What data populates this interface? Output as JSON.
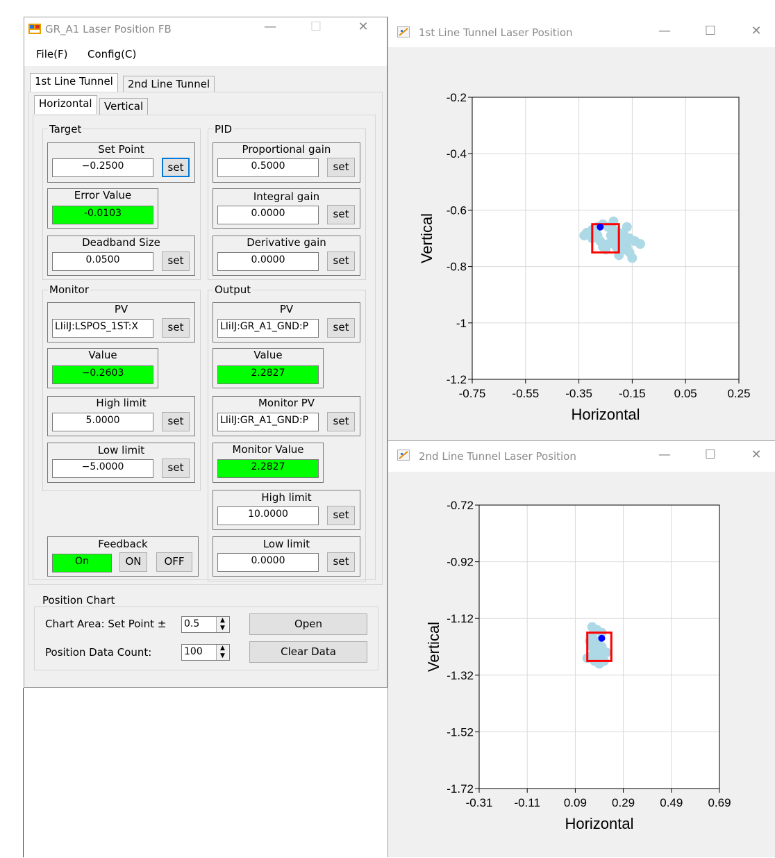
{
  "main_window": {
    "title": "GR_A1 Laser Position FB",
    "menu": [
      "File(F)",
      "Config(C)"
    ],
    "tabs": [
      "1st Line Tunnel",
      "2nd Line Tunnel"
    ],
    "subtabs": [
      "Horizontal",
      "Vertical"
    ],
    "target": {
      "group": "Target",
      "set_point": {
        "label": "Set Point",
        "value": "−0.2500"
      },
      "error_value": {
        "label": "Error Value",
        "value": "-0.0103"
      },
      "deadband": {
        "label": "Deadband Size",
        "value": "0.0500"
      }
    },
    "pid": {
      "group": "PID",
      "proportional": {
        "label": "Proportional gain",
        "value": "0.5000"
      },
      "integral": {
        "label": "Integral gain",
        "value": "0.0000"
      },
      "derivative": {
        "label": "Derivative gain",
        "value": "0.0000"
      }
    },
    "monitor": {
      "group": "Monitor",
      "pv": {
        "label": "PV",
        "value": "LIiIJ:LSPOS_1ST:X"
      },
      "value": {
        "label": "Value",
        "value": "−0.2603"
      },
      "high_limit": {
        "label": "High limit",
        "value": "5.0000"
      },
      "low_limit": {
        "label": "Low limit",
        "value": "−5.0000"
      }
    },
    "output": {
      "group": "Output",
      "pv": {
        "label": "PV",
        "value": "LIiIJ:GR_A1_GND:P"
      },
      "value": {
        "label": "Value",
        "value": "2.2827"
      },
      "monitor_pv": {
        "label": "Monitor PV",
        "value": "LIiIJ:GR_A1_GND:P"
      },
      "monitor_value": {
        "label": "Monitor Value",
        "value": "2.2827"
      },
      "high_limit": {
        "label": "High limit",
        "value": "10.0000"
      },
      "low_limit": {
        "label": "Low limit",
        "value": "0.0000"
      }
    },
    "feedback": {
      "label": "Feedback",
      "state": "On",
      "on_label": "ON",
      "off_label": "OFF"
    },
    "set_label": "set",
    "position_chart": {
      "group": "Position Chart",
      "area_label": "Chart Area: Set Point ±",
      "area_value": "0.5",
      "count_label": "Position Data Count:",
      "count_value": "100",
      "open_label": "Open",
      "clear_label": "Clear Data"
    }
  },
  "colors": {
    "green_indicator": "#00ff00",
    "cloud": "#add8e6",
    "current_point": "#0000ff",
    "target_box": "#ff0000",
    "focus": "#0078d7"
  },
  "icons": [
    "app-icon",
    "minimize-icon",
    "maximize-icon",
    "close-icon",
    "chart-app-icon",
    "spin-up-icon",
    "spin-down-icon"
  ],
  "charts": [
    {
      "title": "1st Line Tunnel Laser Position",
      "chart_data": {
        "type": "scatter",
        "xlabel": "Horizontal",
        "ylabel": "Vertical",
        "xlim": [
          -0.75,
          0.25
        ],
        "ylim": [
          -1.2,
          -0.2
        ],
        "x_ticks": [
          "-0.75",
          "-0.55",
          "-0.35",
          "-0.15",
          "0.05",
          "0.25"
        ],
        "y_ticks": [
          "-0.2",
          "-0.4",
          "-0.6",
          "-0.8",
          "-1",
          "-1.2"
        ],
        "grid": true,
        "history_cloud": [
          [
            -0.32,
            -0.68
          ],
          [
            -0.3,
            -0.67
          ],
          [
            -0.28,
            -0.66
          ],
          [
            -0.26,
            -0.65
          ],
          [
            -0.24,
            -0.66
          ],
          [
            -0.22,
            -0.67
          ],
          [
            -0.2,
            -0.68
          ],
          [
            -0.18,
            -0.69
          ],
          [
            -0.16,
            -0.7
          ],
          [
            -0.14,
            -0.71
          ],
          [
            -0.3,
            -0.7
          ],
          [
            -0.27,
            -0.71
          ],
          [
            -0.24,
            -0.72
          ],
          [
            -0.21,
            -0.73
          ],
          [
            -0.18,
            -0.74
          ],
          [
            -0.16,
            -0.75
          ],
          [
            -0.15,
            -0.77
          ],
          [
            -0.2,
            -0.76
          ],
          [
            -0.25,
            -0.74
          ],
          [
            -0.28,
            -0.69
          ],
          [
            -0.22,
            -0.7
          ],
          [
            -0.19,
            -0.71
          ],
          [
            -0.17,
            -0.73
          ],
          [
            -0.23,
            -0.69
          ],
          [
            -0.26,
            -0.73
          ],
          [
            -0.12,
            -0.72
          ],
          [
            -0.33,
            -0.69
          ],
          [
            -0.17,
            -0.66
          ],
          [
            -0.22,
            -0.64
          ]
        ],
        "current_point": [
          -0.27,
          -0.66
        ],
        "target_box": {
          "x": [
            -0.3,
            -0.2
          ],
          "y": [
            -0.75,
            -0.65
          ]
        }
      }
    },
    {
      "title": "2nd Line Tunnel Laser Position",
      "chart_data": {
        "type": "scatter",
        "xlabel": "Horizontal",
        "ylabel": "Vertical",
        "xlim": [
          -0.31,
          0.69
        ],
        "ylim": [
          -1.72,
          -0.72
        ],
        "x_ticks": [
          "-0.31",
          "-0.11",
          "0.09",
          "0.29",
          "0.49",
          "0.69"
        ],
        "y_ticks": [
          "-0.72",
          "-0.92",
          "-1.12",
          "-1.32",
          "-1.52",
          "-1.72"
        ],
        "grid": true,
        "history_cloud": [
          [
            0.16,
            -1.15
          ],
          [
            0.18,
            -1.16
          ],
          [
            0.2,
            -1.17
          ],
          [
            0.16,
            -1.18
          ],
          [
            0.18,
            -1.2
          ],
          [
            0.2,
            -1.22
          ],
          [
            0.16,
            -1.22
          ],
          [
            0.18,
            -1.24
          ],
          [
            0.2,
            -1.26
          ],
          [
            0.16,
            -1.25
          ],
          [
            0.17,
            -1.27
          ],
          [
            0.19,
            -1.28
          ],
          [
            0.21,
            -1.27
          ],
          [
            0.15,
            -1.2
          ],
          [
            0.22,
            -1.24
          ],
          [
            0.14,
            -1.26
          ]
        ],
        "current_point": [
          0.2,
          -1.19
        ],
        "target_box": {
          "x": [
            0.14,
            0.24
          ],
          "y": [
            -1.27,
            -1.17
          ]
        }
      }
    }
  ]
}
